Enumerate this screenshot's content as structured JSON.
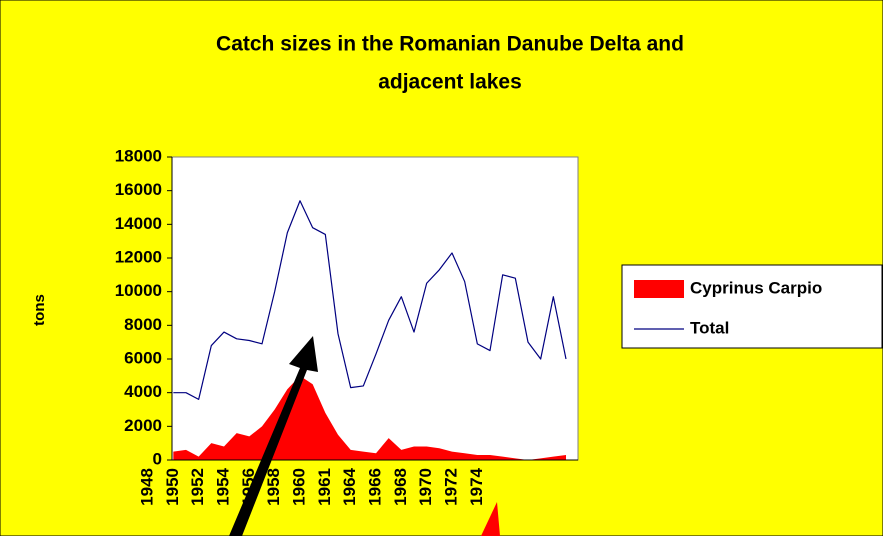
{
  "chart_data": {
    "type": "line-area",
    "title": "Catch sizes in the Romanian Danube Delta and",
    "subtitle": "adjacent lakes",
    "y_label": "tons",
    "categories": [
      "1948",
      null,
      "1950",
      null,
      "1952",
      null,
      "1954",
      null,
      "1956",
      null,
      "1958",
      null,
      "1960",
      null,
      "1961",
      null,
      "1964",
      null,
      "1966",
      null,
      "1968",
      null,
      "1970",
      null,
      "1972",
      null,
      "1974",
      null,
      null,
      null,
      null,
      null,
      null,
      null
    ],
    "series": [
      {
        "name": "Cyprinus Carpio",
        "color": "#ff0000",
        "kind": "area",
        "values": [
          null,
          null,
          500,
          600,
          200,
          1000,
          800,
          1600,
          1400,
          2000,
          3000,
          4200,
          5000,
          4500,
          2800,
          1500,
          600,
          500,
          400,
          1300,
          600,
          800,
          800,
          700,
          500,
          400,
          300,
          300,
          200,
          100,
          0,
          100,
          200,
          300
        ]
      },
      {
        "name": "Total",
        "color": "#000080",
        "kind": "line",
        "values": [
          null,
          null,
          4000,
          4000,
          3600,
          6800,
          7600,
          7200,
          7100,
          6900,
          10000,
          13500,
          15400,
          13800,
          13400,
          7500,
          4300,
          4400,
          6300,
          8300,
          9700,
          7600,
          10500,
          11300,
          12300,
          10600,
          6900,
          6500,
          11000,
          10800,
          7000,
          6000,
          9700,
          6000
        ]
      }
    ],
    "ylim": [
      0,
      18000
    ],
    "yticks": [
      0,
      2000,
      4000,
      6000,
      8000,
      10000,
      12000,
      14000,
      16000,
      18000
    ]
  }
}
